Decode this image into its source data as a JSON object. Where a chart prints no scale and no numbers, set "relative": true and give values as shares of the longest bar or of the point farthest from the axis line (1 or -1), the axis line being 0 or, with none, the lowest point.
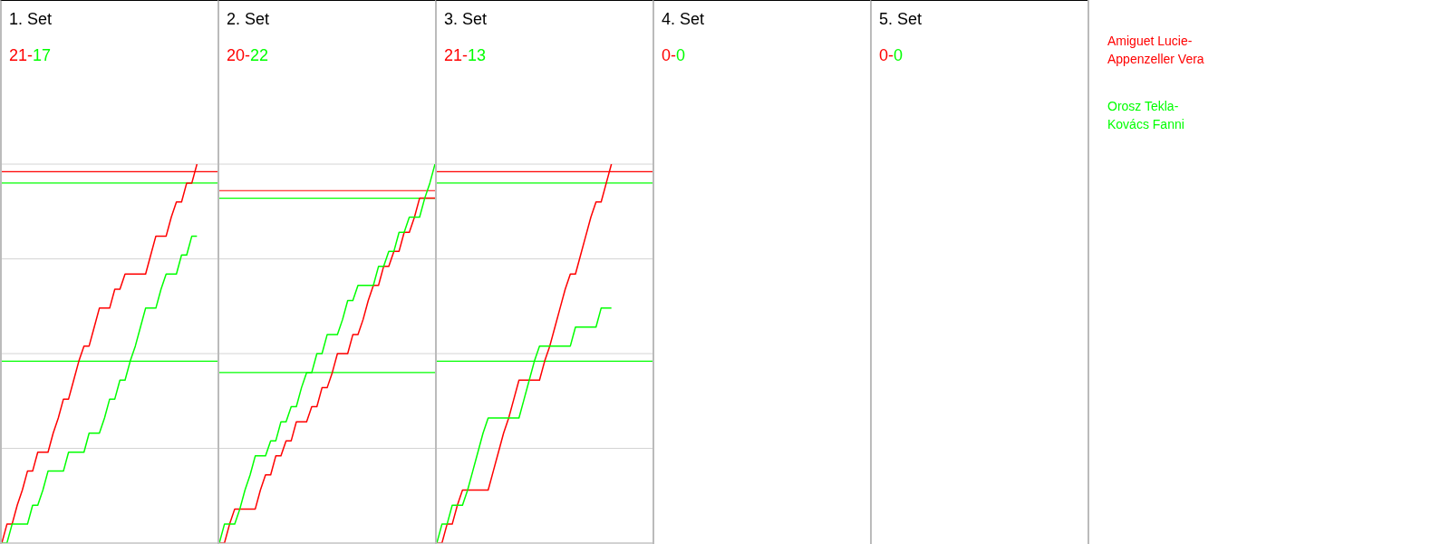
{
  "chart_data": [
    {
      "type": "line",
      "title": "1. Set",
      "annotations": [
        "21-",
        "17"
      ],
      "relative": true,
      "grid": "y",
      "categories": [
        null,
        null,
        null,
        null,
        null,
        null,
        null,
        null,
        null,
        null,
        null,
        null,
        null,
        null,
        null,
        null,
        null,
        null,
        null,
        null,
        null,
        null,
        null,
        null,
        null,
        null,
        null,
        null,
        null,
        null,
        null,
        null,
        null,
        null,
        null,
        null,
        null,
        null,
        null,
        null,
        null,
        null,
        null
      ],
      "series": [
        {
          "color": "#ff0000",
          "values": [
            0,
            0.05,
            0.05,
            0.1,
            0.14,
            0.19,
            0.19,
            0.24,
            0.24,
            0.24,
            0.29,
            0.33,
            0.38,
            0.38,
            0.43,
            0.48,
            0.52,
            0.52,
            0.57,
            0.62,
            0.62,
            0.62,
            0.67,
            0.67,
            0.71,
            0.71,
            0.71,
            0.71,
            0.71,
            0.76,
            0.81,
            0.81,
            0.81,
            0.86,
            0.9,
            0.9,
            0.95,
            0.95,
            1,
            null,
            null,
            null,
            null
          ]
        },
        {
          "color": "#00ff00",
          "values": [
            0,
            0,
            0.05,
            0.05,
            0.05,
            0.05,
            0.1,
            0.1,
            0.14,
            0.19,
            0.19,
            0.19,
            0.19,
            0.24,
            0.24,
            0.24,
            0.24,
            0.29,
            0.29,
            0.29,
            0.33,
            0.38,
            0.38,
            0.43,
            0.43,
            0.48,
            0.52,
            0.57,
            0.62,
            0.62,
            0.62,
            0.67,
            0.71,
            0.71,
            0.71,
            0.76,
            0.76,
            0.81,
            0.81,
            null,
            null,
            null,
            null
          ]
        }
      ],
      "ref_lines": [
        {
          "axis": "y",
          "value": 0.98,
          "color": "#ff0000"
        },
        {
          "axis": "y",
          "value": 0.95,
          "color": "#00ff00"
        },
        {
          "axis": "y",
          "value": 0.48,
          "color": "#00ff00"
        }
      ]
    },
    {
      "type": "line",
      "title": "2. Set",
      "annotations": [
        "20-",
        "22"
      ],
      "relative": true,
      "grid": "y",
      "categories": [
        null,
        null,
        null,
        null,
        null,
        null,
        null,
        null,
        null,
        null,
        null,
        null,
        null,
        null,
        null,
        null,
        null,
        null,
        null,
        null,
        null,
        null,
        null,
        null,
        null,
        null,
        null,
        null,
        null,
        null,
        null,
        null,
        null,
        null,
        null,
        null,
        null,
        null,
        null,
        null,
        null,
        null,
        null
      ],
      "series": [
        {
          "color": "#ff0000",
          "values": [
            0,
            0,
            0.05,
            0.09,
            0.09,
            0.09,
            0.09,
            0.09,
            0.14,
            0.18,
            0.18,
            0.23,
            0.23,
            0.27,
            0.27,
            0.32,
            0.32,
            0.32,
            0.36,
            0.36,
            0.41,
            0.41,
            0.45,
            0.5,
            0.5,
            0.5,
            0.55,
            0.55,
            0.59,
            0.64,
            0.68,
            0.68,
            0.73,
            0.73,
            0.77,
            0.77,
            0.82,
            0.82,
            0.86,
            0.91,
            0.91,
            0.91,
            0.91
          ]
        },
        {
          "color": "#00ff00",
          "values": [
            0,
            0.05,
            0.05,
            0.05,
            0.09,
            0.14,
            0.18,
            0.23,
            0.23,
            0.23,
            0.27,
            0.27,
            0.32,
            0.32,
            0.36,
            0.36,
            0.41,
            0.45,
            0.45,
            0.5,
            0.5,
            0.55,
            0.55,
            0.55,
            0.59,
            0.64,
            0.64,
            0.68,
            0.68,
            0.68,
            0.68,
            0.73,
            0.73,
            0.77,
            0.77,
            0.82,
            0.82,
            0.86,
            0.86,
            0.86,
            0.91,
            0.95,
            1
          ]
        }
      ],
      "ref_lines": [
        {
          "axis": "y",
          "value": 0.93,
          "color": "#ff0000"
        },
        {
          "axis": "y",
          "value": 0.91,
          "color": "#00ff00"
        },
        {
          "axis": "y",
          "value": 0.45,
          "color": "#00ff00"
        }
      ]
    },
    {
      "type": "line",
      "title": "3. Set",
      "annotations": [
        "21-",
        "13"
      ],
      "relative": true,
      "grid": "y",
      "categories": [
        null,
        null,
        null,
        null,
        null,
        null,
        null,
        null,
        null,
        null,
        null,
        null,
        null,
        null,
        null,
        null,
        null,
        null,
        null,
        null,
        null,
        null,
        null,
        null,
        null,
        null,
        null,
        null,
        null,
        null,
        null,
        null,
        null,
        null,
        null,
        null,
        null,
        null,
        null,
        null,
        null,
        null,
        null
      ],
      "series": [
        {
          "color": "#ff0000",
          "values": [
            0,
            0,
            0.05,
            0.05,
            0.1,
            0.14,
            0.14,
            0.14,
            0.14,
            0.14,
            0.14,
            0.19,
            0.24,
            0.29,
            0.33,
            0.38,
            0.43,
            0.43,
            0.43,
            0.43,
            0.43,
            0.48,
            0.52,
            0.57,
            0.62,
            0.67,
            0.71,
            0.71,
            0.76,
            0.81,
            0.86,
            0.9,
            0.9,
            0.95,
            1,
            null,
            null,
            null,
            null,
            null,
            null,
            null,
            null
          ]
        },
        {
          "color": "#00ff00",
          "values": [
            0,
            0.05,
            0.05,
            0.1,
            0.1,
            0.1,
            0.14,
            0.19,
            0.24,
            0.29,
            0.33,
            0.33,
            0.33,
            0.33,
            0.33,
            0.33,
            0.33,
            0.38,
            0.43,
            0.48,
            0.52,
            0.52,
            0.52,
            0.52,
            0.52,
            0.52,
            0.52,
            0.57,
            0.57,
            0.57,
            0.57,
            0.57,
            0.62,
            0.62,
            0.62,
            null,
            null,
            null,
            null,
            null,
            null,
            null,
            null
          ]
        }
      ],
      "ref_lines": [
        {
          "axis": "y",
          "value": 0.98,
          "color": "#ff0000"
        },
        {
          "axis": "y",
          "value": 0.95,
          "color": "#00ff00"
        },
        {
          "axis": "y",
          "value": 0.48,
          "color": "#00ff00"
        }
      ]
    },
    {
      "type": "other",
      "title": "4. Set",
      "annotations": [
        "0-",
        "0"
      ],
      "series": [
        {
          "color": "#ff0000"
        },
        {
          "color": "#00ff00"
        }
      ]
    },
    {
      "type": "other",
      "title": "5. Set",
      "annotations": [
        "0-",
        "0"
      ],
      "series": [
        {
          "name": "Amiguet Lucie-Appenzeller Vera",
          "color": "#ff0000"
        },
        {
          "name": "Orosz Tekla-Kovács Fanni",
          "color": "#00ff00"
        }
      ]
    }
  ]
}
